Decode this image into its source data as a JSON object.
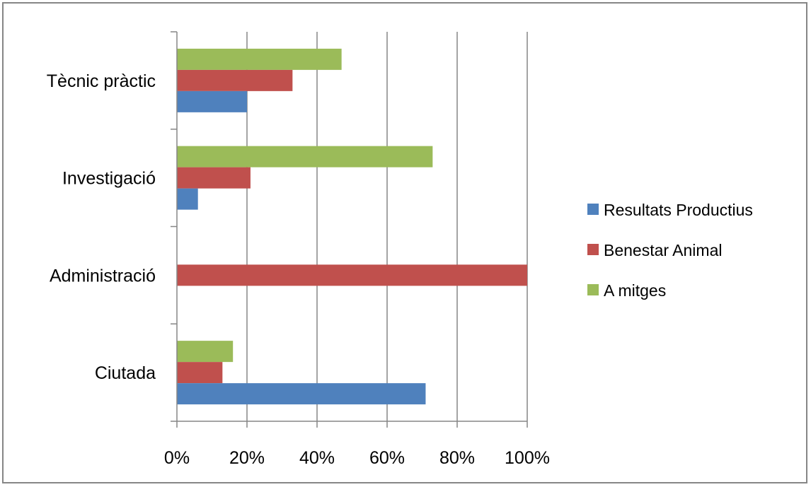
{
  "chart_data": {
    "type": "bar",
    "orientation": "horizontal",
    "categories": [
      "Tècnic pràctic",
      "Investigació",
      "Administració",
      "Ciutada"
    ],
    "series": [
      {
        "name": "A mitges",
        "color": "#9BBB59",
        "values": [
          47,
          73,
          0,
          16
        ]
      },
      {
        "name": "Benestar Animal",
        "color": "#C0504D",
        "values": [
          33,
          21,
          100,
          13
        ]
      },
      {
        "name": "Resultats Productius",
        "color": "#4F81BD",
        "values": [
          20,
          6,
          0,
          71
        ]
      }
    ],
    "xlim": [
      0,
      100
    ],
    "x_ticks": [
      "0%",
      "20%",
      "40%",
      "60%",
      "80%",
      "100%"
    ],
    "grid": "vertical",
    "legend_position": "right",
    "title": "",
    "xlabel": "",
    "ylabel": ""
  }
}
